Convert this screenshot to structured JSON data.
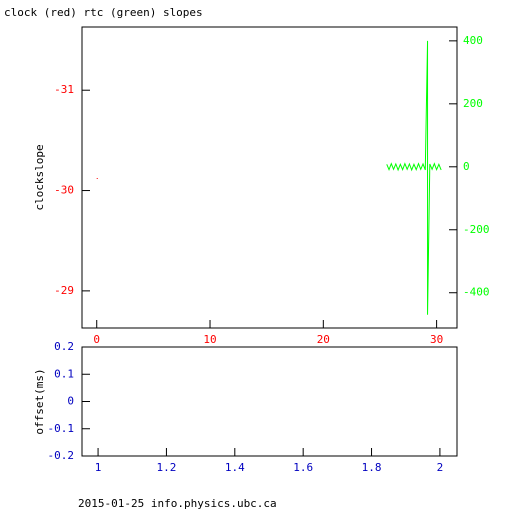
{
  "chart_data": [
    {
      "type": "line",
      "title": "clock (red) rtc (green) slopes",
      "ylabel": "clockslope",
      "xlim": [
        -1.3,
        31.8
      ],
      "xticks": [
        0,
        10,
        20,
        30
      ],
      "ylim": [
        -28.63,
        -31.63
      ],
      "yticks": [
        -31,
        -30,
        -29
      ],
      "y2lim": [
        -512,
        444
      ],
      "y2ticks": [
        -400,
        -200,
        0,
        200,
        400
      ],
      "series": [
        {
          "color": "#ff0000",
          "x": [
            0
          ],
          "values": [
            -30.12
          ]
        },
        {
          "color": "#00ff00",
          "axis": "y2",
          "x": [
            25.6,
            25.8,
            26.0,
            26.2,
            26.4,
            26.6,
            26.8,
            27.0,
            27.2,
            27.4,
            27.6,
            27.8,
            28.0,
            28.2,
            28.4,
            28.6,
            28.8,
            29.0,
            29.2,
            29.2,
            29.4,
            29.6,
            29.8,
            30.0,
            30.2,
            30.4
          ],
          "values": [
            8,
            -9,
            10,
            -8,
            9,
            -10,
            8,
            -9,
            10,
            -8,
            9,
            -10,
            8,
            -9,
            10,
            -8,
            9,
            -10,
            400,
            -470,
            9,
            -8,
            10,
            -9,
            8,
            -10
          ]
        }
      ]
    },
    {
      "type": "line",
      "ylabel": "offset(ms)",
      "color": "#0000c0",
      "xlim": [
        0.953,
        2.05
      ],
      "xticks": [
        1,
        1.2,
        1.4,
        1.6,
        1.8,
        2
      ],
      "ylim": [
        -0.2,
        0.2
      ],
      "yticks": [
        -0.2,
        -0.1,
        0,
        0.1,
        0.2
      ]
    }
  ],
  "footer": "2015-01-25 info.physics.ubc.ca"
}
